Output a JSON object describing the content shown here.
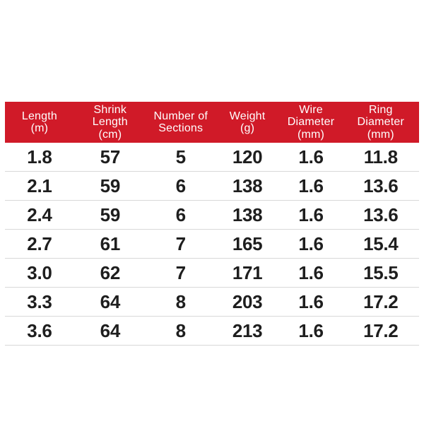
{
  "colors": {
    "header_bg": "#d01a28",
    "header_text": "#ffffff",
    "body_text": "#1e1e1e",
    "divider": "#d8d8d8",
    "page_bg": "#ffffff"
  },
  "table": {
    "header_lines": [
      "Length\n(m)",
      "Shrink\nLength\n(cm)",
      "Number of\nSections",
      "Weight\n(g)",
      "Wire\nDiameter\n(mm)",
      "Ring\nDiameter\n(mm)"
    ],
    "columns": [
      "Length (m)",
      "Shrink Length (cm)",
      "Number of Sections",
      "Weight (g)",
      "Wire Diameter (mm)",
      "Ring Diameter (mm)"
    ],
    "rows": [
      [
        "1.8",
        "57",
        "5",
        "120",
        "1.6",
        "11.8"
      ],
      [
        "2.1",
        "59",
        "6",
        "138",
        "1.6",
        "13.6"
      ],
      [
        "2.4",
        "59",
        "6",
        "138",
        "1.6",
        "13.6"
      ],
      [
        "2.7",
        "61",
        "7",
        "165",
        "1.6",
        "15.4"
      ],
      [
        "3.0",
        "62",
        "7",
        "171",
        "1.6",
        "15.5"
      ],
      [
        "3.3",
        "64",
        "8",
        "203",
        "1.6",
        "17.2"
      ],
      [
        "3.6",
        "64",
        "8",
        "213",
        "1.6",
        "17.2"
      ]
    ]
  }
}
